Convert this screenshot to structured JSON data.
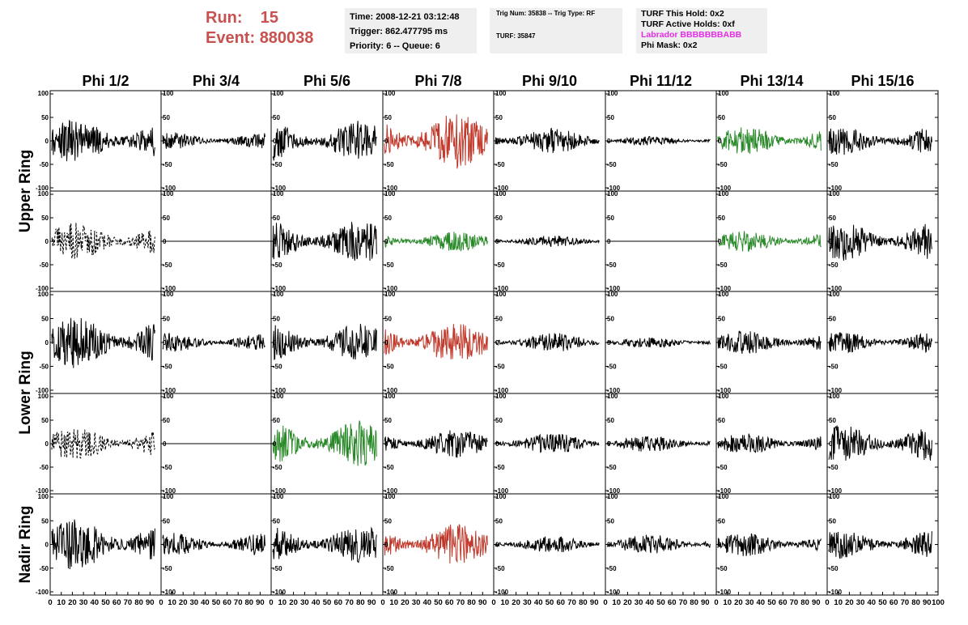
{
  "run_label": "Run:",
  "run_value": "15",
  "event_label": "Event:",
  "event_value": "880038",
  "info": {
    "time": "Time: 2008-12-21 03:12:48",
    "trigger": "Trigger: 862.477795 ms",
    "priority": "Priority: 6 -- Queue: 6",
    "trig_num": "Trig Num: 35838 -- Trig Type: RF",
    "turf": "TURF: 35847",
    "turf_this_hold": "TURF This Hold: 0x2",
    "turf_active_holds": "TURF Active Holds: 0xf",
    "labrador": "Labrador BBBBBBBABB",
    "phi_mask": "Phi Mask: 0x2"
  },
  "colors": {
    "header": "#c8504f",
    "labrador": "#e62be6",
    "red": "#c0392b",
    "green": "#2a8a2a",
    "black": "#000000"
  },
  "chart_data": {
    "type": "line",
    "columns": [
      "Phi 1/2",
      "Phi 3/4",
      "Phi 5/6",
      "Phi 7/8",
      "Phi 9/10",
      "Phi 11/12",
      "Phi 13/14",
      "Phi 15/16"
    ],
    "rings": [
      "Upper Ring",
      "Lower Ring",
      "Nadir Ring"
    ],
    "ylim": [
      -100,
      100
    ],
    "xlim": [
      0,
      100
    ],
    "yticks_std": [
      "100",
      "50",
      "0",
      "-50",
      "-100"
    ],
    "yticks_nadir": [
      "100",
      "50",
      "0",
      "-50",
      "-100"
    ],
    "xticks": [
      "0",
      "10",
      "20",
      "30",
      "40",
      "50",
      "60",
      "70",
      "80",
      "90",
      "100"
    ],
    "panels": [
      [
        {
          "c": "black",
          "a": 48
        },
        {
          "c": "black",
          "a": 18
        },
        {
          "c": "black",
          "a": 45
        },
        {
          "c": "red",
          "a": 60
        },
        {
          "c": "black",
          "a": 28
        },
        {
          "c": "black",
          "a": 10
        },
        {
          "c": "green",
          "a": 30
        },
        {
          "c": "black",
          "a": 30
        }
      ],
      [
        {
          "c": "black",
          "a": 40,
          "dash": true
        },
        {
          "c": "black",
          "a": 0
        },
        {
          "c": "black",
          "a": 45
        },
        {
          "c": "green",
          "a": 22
        },
        {
          "c": "black",
          "a": 12
        },
        {
          "c": "black",
          "a": 0
        },
        {
          "c": "green",
          "a": 22
        },
        {
          "c": "black",
          "a": 42
        }
      ],
      [
        {
          "c": "black",
          "a": 55
        },
        {
          "c": "black",
          "a": 20
        },
        {
          "c": "black",
          "a": 40
        },
        {
          "c": "red",
          "a": 45
        },
        {
          "c": "black",
          "a": 20
        },
        {
          "c": "black",
          "a": 12
        },
        {
          "c": "black",
          "a": 25
        },
        {
          "c": "black",
          "a": 22
        }
      ],
      [
        {
          "c": "black",
          "a": 35,
          "dash": true
        },
        {
          "c": "black",
          "a": 0
        },
        {
          "c": "green",
          "a": 50
        },
        {
          "c": "black",
          "a": 30
        },
        {
          "c": "black",
          "a": 22
        },
        {
          "c": "black",
          "a": 18
        },
        {
          "c": "black",
          "a": 22
        },
        {
          "c": "black",
          "a": 40
        }
      ],
      [
        {
          "c": "black",
          "a": 55
        },
        {
          "c": "black",
          "a": 25
        },
        {
          "c": "black",
          "a": 40
        },
        {
          "c": "red",
          "a": 45
        },
        {
          "c": "black",
          "a": 18
        },
        {
          "c": "black",
          "a": 22
        },
        {
          "c": "black",
          "a": 25
        },
        {
          "c": "black",
          "a": 30
        }
      ]
    ]
  }
}
